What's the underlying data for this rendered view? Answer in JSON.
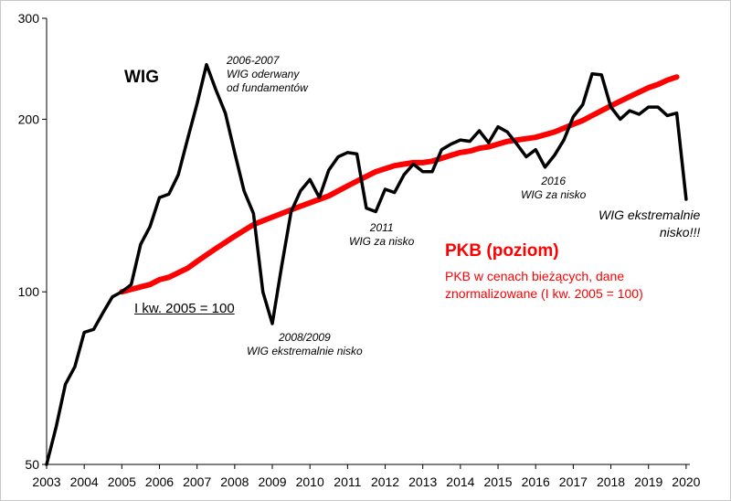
{
  "chart_data": {
    "type": "line",
    "y_scale": "log",
    "ylim": [
      50,
      300
    ],
    "y_ticks": [
      "50",
      "100",
      "200",
      "300"
    ],
    "xlim": [
      2003,
      2020.1
    ],
    "x_ticks": [
      "2003",
      "2004",
      "2005",
      "2006",
      "2007",
      "2008",
      "2009",
      "2010",
      "2011",
      "2012",
      "2013",
      "2014",
      "2015",
      "2016",
      "2017",
      "2018",
      "2019",
      "2020"
    ],
    "series": [
      {
        "name": "WIG",
        "color": "#000000",
        "x": [
          2003.0,
          2003.25,
          2003.5,
          2003.75,
          2004.0,
          2004.25,
          2004.5,
          2004.75,
          2005.0,
          2005.25,
          2005.5,
          2005.75,
          2006.0,
          2006.25,
          2006.5,
          2006.75,
          2007.0,
          2007.25,
          2007.5,
          2007.75,
          2008.0,
          2008.25,
          2008.5,
          2008.75,
          2009.0,
          2009.25,
          2009.5,
          2009.75,
          2010.0,
          2010.25,
          2010.5,
          2010.75,
          2011.0,
          2011.25,
          2011.5,
          2011.75,
          2012.0,
          2012.25,
          2012.5,
          2012.75,
          2013.0,
          2013.25,
          2013.5,
          2013.75,
          2014.0,
          2014.25,
          2014.5,
          2014.75,
          2015.0,
          2015.25,
          2015.5,
          2015.75,
          2016.0,
          2016.25,
          2016.5,
          2016.75,
          2017.0,
          2017.25,
          2017.5,
          2017.75,
          2018.0,
          2018.25,
          2018.5,
          2018.75,
          2019.0,
          2019.25,
          2019.5,
          2019.75,
          2020.0
        ],
        "values": [
          50,
          58,
          69,
          74,
          85,
          86,
          92,
          98,
          100,
          103,
          121,
          130,
          146,
          148,
          160,
          185,
          213,
          249,
          225,
          205,
          175,
          150,
          137,
          100,
          88,
          111,
          138,
          150,
          157,
          146,
          163,
          172,
          175,
          174,
          140,
          138,
          151,
          149,
          160,
          167,
          162,
          162,
          177,
          181,
          184,
          183,
          191,
          182,
          194,
          190,
          181,
          172,
          177,
          165,
          173,
          184,
          202,
          212,
          240,
          239,
          210,
          200,
          207,
          204,
          210,
          210,
          203,
          205,
          145
        ]
      },
      {
        "name": "PKB (poziom)",
        "color": "#ff0000",
        "x": [
          2005.0,
          2005.25,
          2005.5,
          2005.75,
          2006.0,
          2006.25,
          2006.5,
          2006.75,
          2007.0,
          2007.25,
          2007.5,
          2007.75,
          2008.0,
          2008.25,
          2008.5,
          2008.75,
          2009.0,
          2009.25,
          2009.5,
          2009.75,
          2010.0,
          2010.25,
          2010.5,
          2010.75,
          2011.0,
          2011.25,
          2011.5,
          2011.75,
          2012.0,
          2012.25,
          2012.5,
          2012.75,
          2013.0,
          2013.25,
          2013.5,
          2013.75,
          2014.0,
          2014.25,
          2014.5,
          2014.75,
          2015.0,
          2015.25,
          2015.5,
          2015.75,
          2016.0,
          2016.25,
          2016.5,
          2016.75,
          2017.0,
          2017.25,
          2017.5,
          2017.75,
          2018.0,
          2018.25,
          2018.5,
          2018.75,
          2019.0,
          2019.25,
          2019.5,
          2019.75
        ],
        "values": [
          100,
          101,
          102,
          103,
          105,
          106,
          108,
          110,
          113,
          116,
          119,
          122,
          125,
          128,
          131,
          133,
          135,
          137,
          139,
          141,
          143,
          145,
          147,
          150,
          153,
          156,
          159,
          162,
          164,
          166,
          167,
          168,
          168,
          169,
          171,
          173,
          175,
          176,
          178,
          179,
          181,
          183,
          184,
          185,
          186,
          188,
          190,
          193,
          196,
          199,
          203,
          207,
          211,
          215,
          219,
          223,
          227,
          230,
          234,
          237
        ]
      }
    ],
    "title_wig": "WIG",
    "title_pkb": "PKB (poziom)",
    "subtitle_pkb": "PKB w cenach bieżących, dane znormalizowane (I kw. 2005 = 100)",
    "base_label": "I kw. 2005 = 100",
    "annotations": {
      "a2006_l1": "2006-2007",
      "a2006_l2": "WIG oderwany",
      "a2006_l3": "od fundamentów",
      "a2008_l1": "2008/2009",
      "a2008_l2": "WIG ekstremalnie nisko",
      "a2011_l1": "2011",
      "a2011_l2": "WIG za nisko",
      "a2016_l1": "2016",
      "a2016_l2": "WIG za nisko",
      "a2020_l1": "WIG ekstremalnie",
      "a2020_l2": "nisko!!!"
    }
  }
}
